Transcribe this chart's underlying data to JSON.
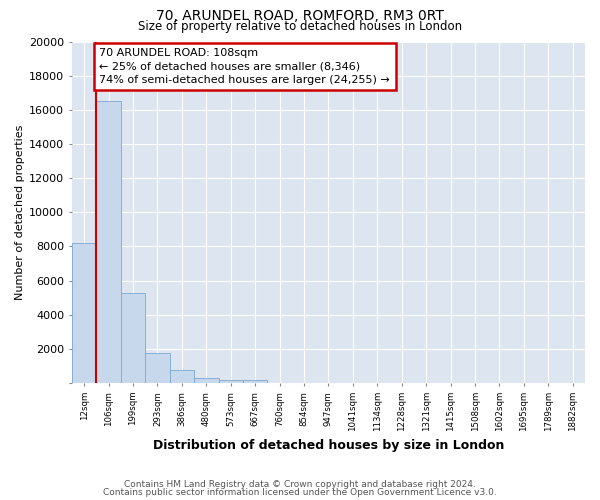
{
  "title1": "70, ARUNDEL ROAD, ROMFORD, RM3 0RT",
  "title2": "Size of property relative to detached houses in London",
  "xlabel": "Distribution of detached houses by size in London",
  "ylabel": "Number of detached properties",
  "bins": [
    "12sqm",
    "106sqm",
    "199sqm",
    "293sqm",
    "386sqm",
    "480sqm",
    "573sqm",
    "667sqm",
    "760sqm",
    "854sqm",
    "947sqm",
    "1041sqm",
    "1134sqm",
    "1228sqm",
    "1321sqm",
    "1415sqm",
    "1508sqm",
    "1602sqm",
    "1695sqm",
    "1789sqm",
    "1882sqm"
  ],
  "values": [
    8200,
    16500,
    5300,
    1750,
    750,
    300,
    200,
    200,
    0,
    0,
    0,
    0,
    0,
    0,
    0,
    0,
    0,
    0,
    0,
    0,
    0
  ],
  "bar_color": "#c8d8ec",
  "bar_edge_color": "#7aaace",
  "vline_color": "#cc0000",
  "annotation_line1": "70 ARUNDEL ROAD: 108sqm",
  "annotation_line2": "← 25% of detached houses are smaller (8,346)",
  "annotation_line3": "74% of semi-detached houses are larger (24,255) →",
  "annotation_box_color": "#cc0000",
  "ylim": [
    0,
    20000
  ],
  "yticks": [
    0,
    2000,
    4000,
    6000,
    8000,
    10000,
    12000,
    14000,
    16000,
    18000,
    20000
  ],
  "bg_color": "#dde6f0",
  "fig_bg": "#ffffff",
  "footer1": "Contains HM Land Registry data © Crown copyright and database right 2024.",
  "footer2": "Contains public sector information licensed under the Open Government Licence v3.0."
}
